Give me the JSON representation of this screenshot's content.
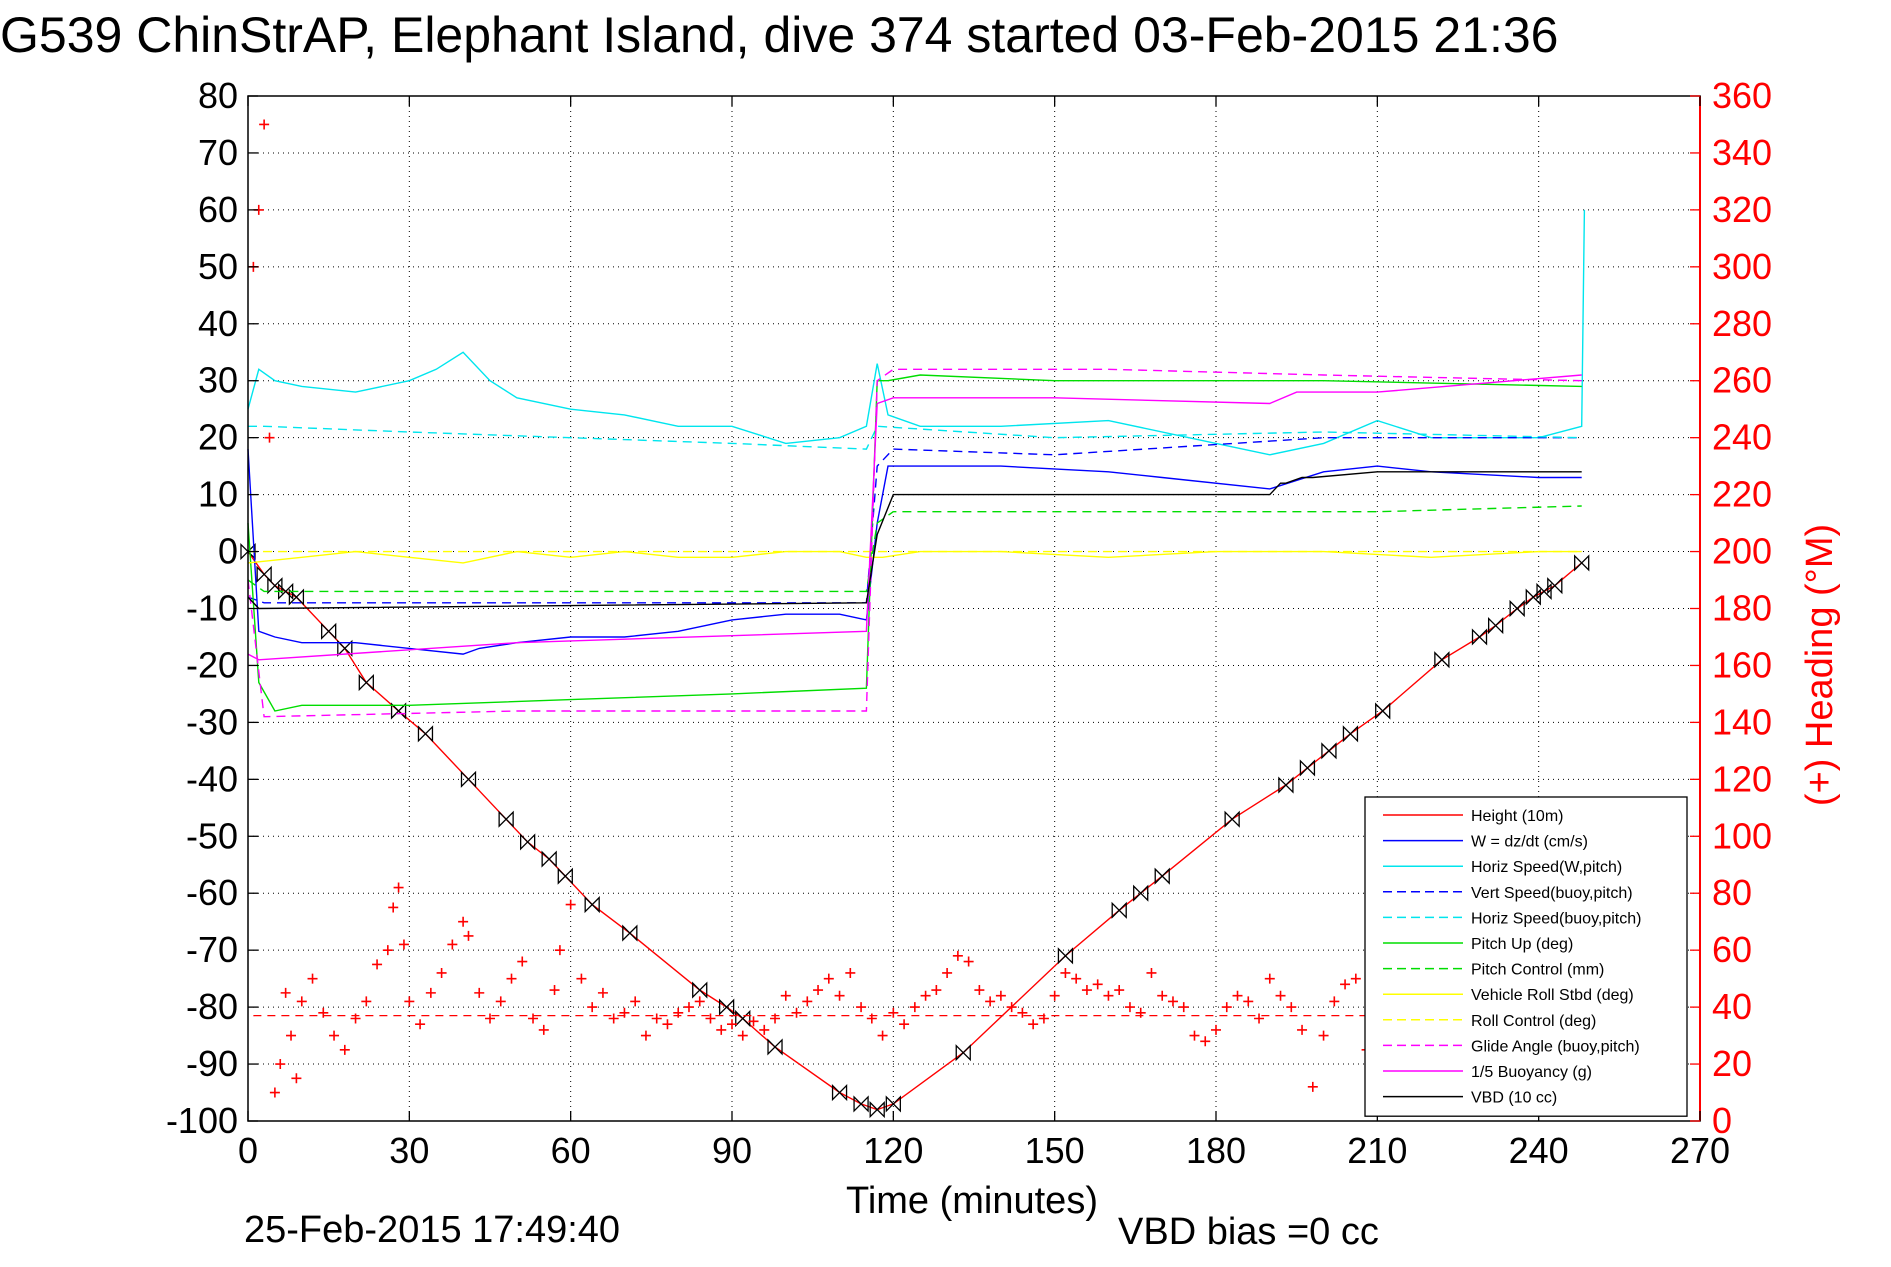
{
  "chart_data": {
    "type": "line",
    "title": "G539 ChinStrAP, Elephant Island, dive 374 started 03-Feb-2015 21:36",
    "xlabel": "Time (minutes)",
    "ylabel": "",
    "y2label": "(+) Heading (°M)",
    "footer_left": "25-Feb-2015 17:49:40",
    "footer_right": "VBD bias =0 cc",
    "xlim": [
      0,
      270
    ],
    "ylim": [
      -100,
      80
    ],
    "y2lim": [
      0,
      360
    ],
    "xticks": [
      0,
      30,
      60,
      90,
      120,
      150,
      180,
      210,
      240,
      270
    ],
    "yticks": [
      -100,
      -90,
      -80,
      -70,
      -60,
      -50,
      -40,
      -30,
      -20,
      -10,
      0,
      10,
      20,
      30,
      40,
      50,
      60,
      70,
      80
    ],
    "y2ticks": [
      0,
      20,
      40,
      60,
      80,
      100,
      120,
      140,
      160,
      180,
      200,
      220,
      240,
      260,
      280,
      300,
      320,
      340,
      360
    ],
    "grid": true,
    "legend_position": "lower-right",
    "series": [
      {
        "name": "Height (10m)",
        "color": "#ff0000",
        "dash": "solid",
        "marker": "bowtie",
        "x": [
          0,
          3,
          5,
          7,
          9,
          15,
          18,
          22,
          28,
          33,
          41,
          48,
          52,
          56,
          59,
          64,
          71,
          84,
          89,
          92,
          98,
          110,
          114,
          117,
          120,
          133,
          152,
          162,
          166,
          170,
          183,
          193,
          197,
          201,
          205,
          211,
          222,
          229,
          232,
          236,
          239,
          241,
          243,
          248
        ],
        "y": [
          0,
          -4,
          -6,
          -7,
          -8,
          -14,
          -17,
          -23,
          -28,
          -32,
          -40,
          -47,
          -51,
          -54,
          -57,
          -62,
          -67,
          -77,
          -80,
          -82,
          -87,
          -95,
          -97,
          -98,
          -97,
          -88,
          -71,
          -63,
          -60,
          -57,
          -47,
          -41,
          -38,
          -35,
          -32,
          -28,
          -19,
          -15,
          -13,
          -10,
          -8,
          -7,
          -6,
          -2
        ]
      },
      {
        "name": "W = dz/dt (cm/s)",
        "color": "#0000ff",
        "dash": "solid",
        "x": [
          0,
          2,
          5,
          10,
          20,
          30,
          40,
          43,
          50,
          60,
          70,
          80,
          90,
          100,
          110,
          115,
          117,
          119,
          125,
          140,
          160,
          170,
          190,
          200,
          210,
          220,
          240,
          248
        ],
        "y": [
          18,
          -14,
          -15,
          -16,
          -16,
          -17,
          -18,
          -17,
          -16,
          -15,
          -15,
          -14,
          -12,
          -11,
          -11,
          -12,
          5,
          15,
          15,
          15,
          14,
          13,
          11,
          14,
          15,
          14,
          13,
          13
        ]
      },
      {
        "name": "Horiz Speed(W,pitch)",
        "color": "#00e5ee",
        "dash": "solid",
        "x": [
          0,
          2,
          5,
          10,
          20,
          30,
          35,
          40,
          45,
          50,
          60,
          70,
          80,
          90,
          100,
          110,
          115,
          117,
          119,
          125,
          140,
          160,
          180,
          190,
          200,
          210,
          220,
          240,
          248,
          248.5
        ],
        "y": [
          25,
          32,
          30,
          29,
          28,
          30,
          32,
          35,
          30,
          27,
          25,
          24,
          22,
          22,
          19,
          20,
          22,
          33,
          24,
          22,
          22,
          23,
          19,
          17,
          19,
          23,
          20,
          20,
          22,
          60
        ]
      },
      {
        "name": "Vert Speed(buoy,pitch)",
        "color": "#0000ff",
        "dash": "dashed",
        "x": [
          0,
          3,
          50,
          100,
          115,
          117,
          120,
          150,
          200,
          248
        ],
        "y": [
          -8,
          -9,
          -9,
          -9,
          -9,
          15,
          18,
          17,
          20,
          20
        ]
      },
      {
        "name": "Horiz Speed(buoy,pitch)",
        "color": "#00e5ee",
        "dash": "dashed",
        "x": [
          0,
          3,
          30,
          60,
          90,
          115,
          117,
          150,
          200,
          248
        ],
        "y": [
          22,
          22,
          21,
          20,
          19,
          18,
          22,
          20,
          21,
          20
        ]
      },
      {
        "name": "Pitch Up (deg)",
        "color": "#00dd00",
        "dash": "solid",
        "x": [
          0,
          2,
          5,
          10,
          30,
          60,
          90,
          115,
          117,
          119,
          125,
          150,
          200,
          248
        ],
        "y": [
          5,
          -23,
          -28,
          -27,
          -27,
          -26,
          -25,
          -24,
          30,
          30,
          31,
          30,
          30,
          29
        ]
      },
      {
        "name": "Pitch Control (mm)",
        "color": "#00dd00",
        "dash": "dashed",
        "x": [
          0,
          3,
          50,
          115,
          117,
          120,
          150,
          180,
          210,
          248
        ],
        "y": [
          -5,
          -7,
          -7,
          -7,
          5,
          7,
          7,
          7,
          7,
          8
        ]
      },
      {
        "name": "Vehicle Roll Stbd (deg)",
        "color": "#ffff00",
        "dash": "solid",
        "x": [
          0,
          10,
          20,
          30,
          40,
          50,
          60,
          70,
          80,
          90,
          100,
          110,
          115,
          118,
          125,
          140,
          160,
          180,
          200,
          220,
          240,
          248
        ],
        "y": [
          -2,
          -1,
          0,
          -1,
          -2,
          0,
          -1,
          0,
          -1,
          -1,
          0,
          0,
          -1,
          -1,
          0,
          0,
          -1,
          0,
          0,
          -1,
          0,
          0
        ]
      },
      {
        "name": "Roll Control (deg)",
        "color": "#ffff00",
        "dash": "dashed",
        "x": [
          0,
          248
        ],
        "y": [
          0,
          0
        ]
      },
      {
        "name": "Glide Angle (buoy,pitch)",
        "color": "#ff00ff",
        "dash": "dashed",
        "x": [
          0,
          3,
          50,
          115,
          117,
          120,
          160,
          200,
          248
        ],
        "y": [
          -5,
          -29,
          -28,
          -28,
          30,
          32,
          32,
          31,
          30
        ]
      },
      {
        "name": "1/5 Buoyancy (g)",
        "color": "#ff00ff",
        "dash": "solid",
        "x": [
          0,
          2,
          50,
          115,
          117,
          120,
          150,
          190,
          195,
          210,
          248
        ],
        "y": [
          -18,
          -19,
          -16,
          -14,
          26,
          27,
          27,
          26,
          28,
          28,
          31
        ]
      },
      {
        "name": "VBD (10 cc)",
        "color": "#000000",
        "dash": "solid",
        "x": [
          0,
          2,
          115,
          117,
          120,
          130,
          140,
          170,
          190,
          192,
          193,
          196,
          198,
          210,
          212,
          240,
          248
        ],
        "y": [
          -8,
          -10,
          -9,
          3,
          10,
          10,
          10,
          10,
          10,
          12,
          12,
          13,
          13,
          14,
          14,
          14,
          14
        ]
      }
    ],
    "heading": {
      "name": "(+) Heading",
      "color": "#ff0000",
      "marker": "plus",
      "mean": 37,
      "x": [
        1,
        2,
        3,
        4,
        5,
        6,
        7,
        8,
        9,
        10,
        12,
        14,
        16,
        18,
        20,
        22,
        24,
        26,
        27,
        28,
        29,
        30,
        32,
        34,
        36,
        38,
        40,
        41,
        43,
        45,
        47,
        49,
        51,
        53,
        55,
        57,
        58,
        60,
        62,
        64,
        66,
        68,
        70,
        72,
        74,
        76,
        78,
        80,
        82,
        84,
        86,
        88,
        90,
        92,
        94,
        96,
        98,
        100,
        102,
        104,
        106,
        108,
        110,
        112,
        114,
        116,
        118,
        120,
        122,
        124,
        126,
        128,
        130,
        132,
        134,
        136,
        138,
        140,
        142,
        144,
        146,
        148,
        150,
        152,
        154,
        156,
        158,
        160,
        162,
        164,
        166,
        168,
        170,
        172,
        174,
        176,
        178,
        180,
        182,
        184,
        186,
        188,
        190,
        192,
        194,
        196,
        198,
        200,
        202,
        204,
        206,
        208
      ],
      "y": [
        300,
        320,
        350,
        240,
        10,
        20,
        45,
        30,
        15,
        42,
        50,
        38,
        30,
        25,
        36,
        42,
        55,
        60,
        75,
        82,
        62,
        42,
        34,
        45,
        52,
        62,
        70,
        65,
        45,
        36,
        42,
        50,
        56,
        36,
        32,
        46,
        60,
        76,
        50,
        40,
        45,
        36,
        38,
        42,
        30,
        36,
        34,
        38,
        40,
        42,
        36,
        32,
        34,
        30,
        35,
        32,
        36,
        44,
        38,
        42,
        46,
        50,
        44,
        52,
        40,
        36,
        30,
        38,
        34,
        40,
        44,
        46,
        52,
        58,
        56,
        46,
        42,
        44,
        40,
        38,
        34,
        36,
        44,
        52,
        50,
        46,
        48,
        44,
        46,
        40,
        38,
        52,
        44,
        42,
        40,
        30,
        28,
        32,
        40,
        44,
        42,
        36,
        50,
        44,
        40,
        32,
        12,
        30,
        42,
        48,
        50,
        25
      ]
    }
  }
}
